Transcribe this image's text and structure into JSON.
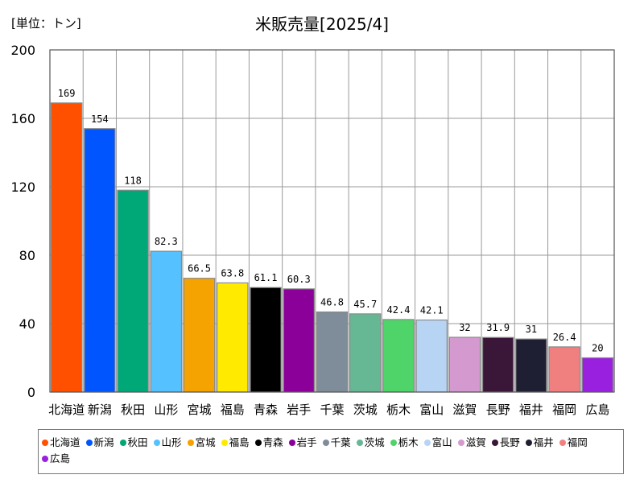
{
  "unit_label": "[単位：トン]",
  "chart_data": {
    "type": "bar",
    "title": "米販売量[2025/4]",
    "categories": [
      "北海道",
      "新潟",
      "秋田",
      "山形",
      "宮城",
      "福島",
      "青森",
      "岩手",
      "千葉",
      "茨城",
      "栃木",
      "富山",
      "滋賀",
      "長野",
      "福井",
      "福岡",
      "広島"
    ],
    "values": [
      169,
      154,
      118,
      82.3,
      66.5,
      63.8,
      61.1,
      60.3,
      46.8,
      45.7,
      42.4,
      42.1,
      32,
      31.9,
      31,
      26.4,
      20
    ],
    "value_labels": [
      "169",
      "154",
      "118",
      "82.3",
      "66.5",
      "63.8",
      "61.1",
      "60.3",
      "46.8",
      "45.7",
      "42.4",
      "42.1",
      "32",
      "31.9",
      "31",
      "26.4",
      "20"
    ],
    "colors": [
      "#ff5000",
      "#0055ff",
      "#00a878",
      "#55c2ff",
      "#f5a300",
      "#ffea00",
      "#000000",
      "#8a0099",
      "#7f8c99",
      "#66b894",
      "#4fd46a",
      "#b8d4f5",
      "#d49ad0",
      "#3a1638",
      "#1f1f33",
      "#f08080",
      "#9a20e0"
    ],
    "yticks": [
      "0",
      "40",
      "80",
      "120",
      "160",
      "200"
    ],
    "ylim": [
      0,
      200
    ],
    "grid": true,
    "legend_position": "bottom"
  }
}
